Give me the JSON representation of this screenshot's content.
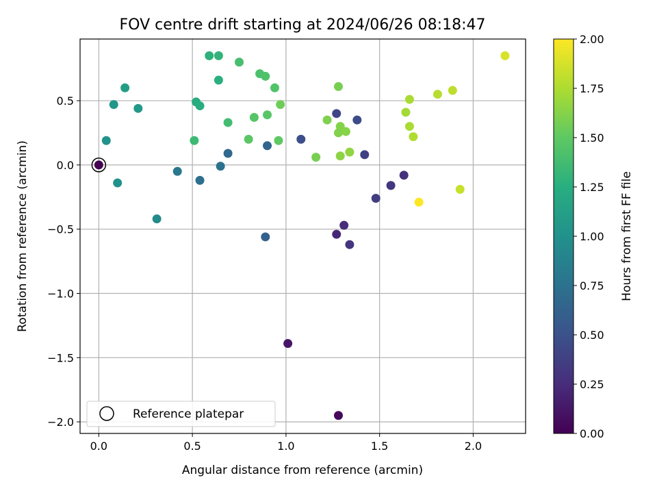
{
  "chart_data": {
    "type": "scatter",
    "title": "FOV centre drift starting at 2024/06/26 08:18:47",
    "xlabel": "Angular distance from reference (arcmin)",
    "ylabel": "Rotation from reference (arcmin)",
    "xlim": [
      -0.1,
      2.28
    ],
    "ylim": [
      -2.09,
      0.98
    ],
    "xticks": [
      0.0,
      0.5,
      1.0,
      1.5,
      2.0
    ],
    "xtick_labels": [
      "0.0",
      "0.5",
      "1.0",
      "1.5",
      "2.0"
    ],
    "yticks": [
      0.5,
      0.0,
      -0.5,
      -1.0,
      -1.5,
      -2.0
    ],
    "ytick_labels": [
      "0.5",
      "0.0",
      "−0.5",
      "−1.0",
      "−1.5",
      "−2.0"
    ],
    "grid": true,
    "colormap": "viridis",
    "colorbar": {
      "label": "Hours from first FF file",
      "range": [
        0.0,
        2.0
      ],
      "ticks": [
        0.0,
        0.25,
        0.5,
        0.75,
        1.0,
        1.25,
        1.5,
        1.75,
        2.0
      ],
      "tick_labels": [
        "0.00",
        "0.25",
        "0.50",
        "0.75",
        "1.00",
        "1.25",
        "1.50",
        "1.75",
        "2.00"
      ]
    },
    "legend": {
      "position": "lower-left",
      "label": "Reference platepar",
      "marker": "open-circle"
    },
    "reference_point": {
      "x": 0.0,
      "y": 0.0
    },
    "points": [
      {
        "x": 0.0,
        "y": 0.0,
        "t": 0.0
      },
      {
        "x": 1.28,
        "y": -1.95,
        "t": 0.05
      },
      {
        "x": 1.01,
        "y": -1.39,
        "t": 0.12
      },
      {
        "x": 1.27,
        "y": -0.54,
        "t": 0.22
      },
      {
        "x": 1.31,
        "y": -0.47,
        "t": 0.25
      },
      {
        "x": 1.34,
        "y": -0.62,
        "t": 0.3
      },
      {
        "x": 1.63,
        "y": -0.08,
        "t": 0.28
      },
      {
        "x": 1.56,
        "y": -0.16,
        "t": 0.32
      },
      {
        "x": 1.48,
        "y": -0.26,
        "t": 0.35
      },
      {
        "x": 1.42,
        "y": 0.08,
        "t": 0.38
      },
      {
        "x": 1.27,
        "y": 0.4,
        "t": 0.42
      },
      {
        "x": 1.38,
        "y": 0.35,
        "t": 0.45
      },
      {
        "x": 1.08,
        "y": 0.2,
        "t": 0.48
      },
      {
        "x": 0.89,
        "y": -0.56,
        "t": 0.62
      },
      {
        "x": 0.9,
        "y": 0.15,
        "t": 0.65
      },
      {
        "x": 0.69,
        "y": 0.09,
        "t": 0.68
      },
      {
        "x": 0.54,
        "y": -0.12,
        "t": 0.72
      },
      {
        "x": 0.65,
        "y": -0.01,
        "t": 0.75
      },
      {
        "x": 0.42,
        "y": -0.05,
        "t": 0.8
      },
      {
        "x": 0.31,
        "y": -0.42,
        "t": 0.95
      },
      {
        "x": 0.1,
        "y": -0.14,
        "t": 1.0
      },
      {
        "x": 0.04,
        "y": 0.19,
        "t": 1.02
      },
      {
        "x": 0.08,
        "y": 0.47,
        "t": 1.04
      },
      {
        "x": 0.21,
        "y": 0.44,
        "t": 1.07
      },
      {
        "x": 0.14,
        "y": 0.6,
        "t": 1.1
      },
      {
        "x": 0.52,
        "y": 0.49,
        "t": 1.22
      },
      {
        "x": 0.54,
        "y": 0.46,
        "t": 1.24
      },
      {
        "x": 0.64,
        "y": 0.66,
        "t": 1.26
      },
      {
        "x": 0.59,
        "y": 0.85,
        "t": 1.28
      },
      {
        "x": 0.64,
        "y": 0.85,
        "t": 1.3
      },
      {
        "x": 0.51,
        "y": 0.19,
        "t": 1.35
      },
      {
        "x": 0.69,
        "y": 0.33,
        "t": 1.38
      },
      {
        "x": 0.75,
        "y": 0.8,
        "t": 1.4
      },
      {
        "x": 0.86,
        "y": 0.71,
        "t": 1.42
      },
      {
        "x": 0.89,
        "y": 0.69,
        "t": 1.43
      },
      {
        "x": 0.94,
        "y": 0.6,
        "t": 1.44
      },
      {
        "x": 0.83,
        "y": 0.37,
        "t": 1.46
      },
      {
        "x": 0.9,
        "y": 0.39,
        "t": 1.47
      },
      {
        "x": 0.8,
        "y": 0.2,
        "t": 1.48
      },
      {
        "x": 0.96,
        "y": 0.19,
        "t": 1.5
      },
      {
        "x": 0.97,
        "y": 0.47,
        "t": 1.55
      },
      {
        "x": 1.16,
        "y": 0.06,
        "t": 1.58
      },
      {
        "x": 1.22,
        "y": 0.35,
        "t": 1.6
      },
      {
        "x": 1.28,
        "y": 0.61,
        "t": 1.58
      },
      {
        "x": 1.29,
        "y": 0.3,
        "t": 1.62
      },
      {
        "x": 1.28,
        "y": 0.25,
        "t": 1.61
      },
      {
        "x": 1.32,
        "y": 0.26,
        "t": 1.63
      },
      {
        "x": 1.29,
        "y": 0.07,
        "t": 1.65
      },
      {
        "x": 1.34,
        "y": 0.1,
        "t": 1.66
      },
      {
        "x": 1.64,
        "y": 0.41,
        "t": 1.72
      },
      {
        "x": 1.66,
        "y": 0.51,
        "t": 1.74
      },
      {
        "x": 1.66,
        "y": 0.3,
        "t": 1.74
      },
      {
        "x": 1.68,
        "y": 0.22,
        "t": 1.76
      },
      {
        "x": 1.81,
        "y": 0.55,
        "t": 1.78
      },
      {
        "x": 1.89,
        "y": 0.58,
        "t": 1.8
      },
      {
        "x": 1.93,
        "y": -0.19,
        "t": 1.83
      },
      {
        "x": 2.17,
        "y": 0.85,
        "t": 1.88
      },
      {
        "x": 1.71,
        "y": -0.29,
        "t": 2.0
      }
    ]
  }
}
